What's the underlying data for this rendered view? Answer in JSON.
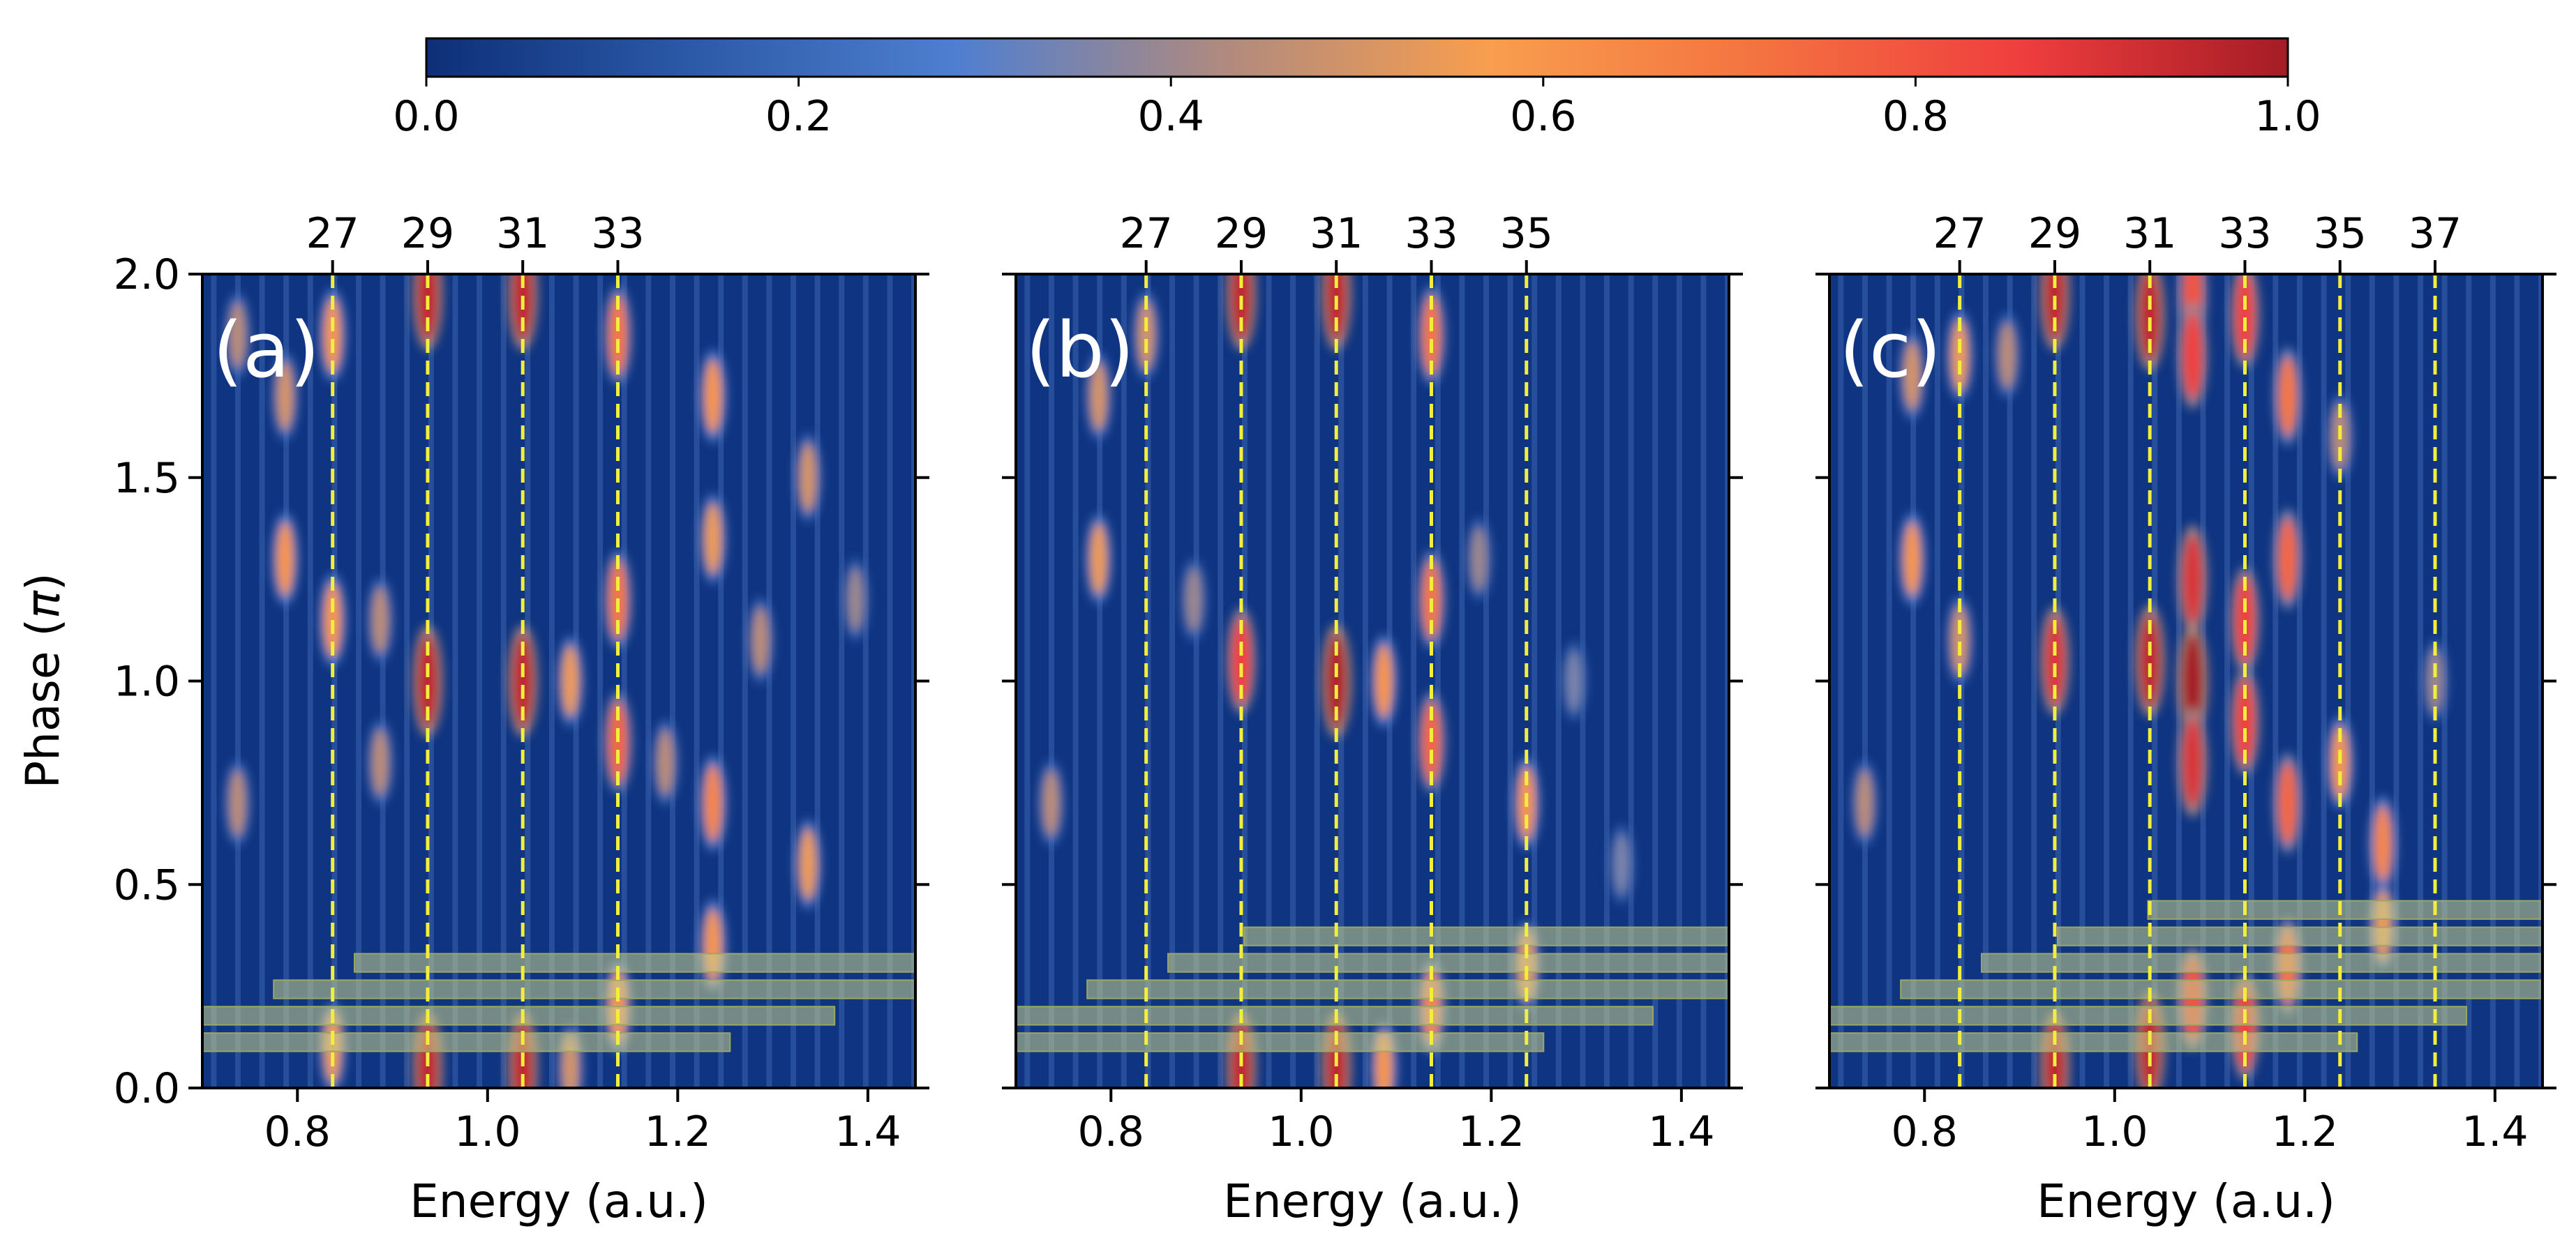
{
  "chart_data": {
    "type": "heatmap",
    "colorbar": {
      "ticks": [
        "0.0",
        "0.2",
        "0.4",
        "0.6",
        "0.8",
        "1.0"
      ],
      "range": [
        0.0,
        1.0
      ],
      "colors": [
        "#0d2f78",
        "#2c5aa8",
        "#4f7fd0",
        "#b08a7e",
        "#f89e4e",
        "#f47340",
        "#ef3e3e",
        "#a51c25"
      ]
    },
    "shared_axes": {
      "xlabel": "Energy (a.u.)",
      "ylabel_prefix": "Phase (",
      "ylabel_symbol": "π",
      "ylabel_suffix": ")",
      "xlim": [
        0.7,
        1.45
      ],
      "ylim": [
        0.0,
        2.0
      ],
      "xticks": [
        0.8,
        1.0,
        1.2,
        1.4
      ],
      "xtick_labels": [
        "0.8",
        "1.0",
        "1.2",
        "1.4"
      ],
      "yticks": [
        0.0,
        0.5,
        1.0,
        1.5,
        2.0
      ],
      "ytick_labels": [
        "0.0",
        "0.5",
        "1.0",
        "1.5",
        "2.0"
      ],
      "harmonic_line_color": "#f2ee3c",
      "band_color": "#c9cf8a"
    },
    "panels": [
      {
        "label": "(a)",
        "harmonic_orders": [
          "27",
          "29",
          "31",
          "33"
        ],
        "harmonic_energies": [
          0.837,
          0.937,
          1.037,
          1.137
        ],
        "bands": [
          {
            "x": [
              0.86,
              1.45
            ],
            "y": [
              0.285,
              0.33
            ]
          },
          {
            "x": [
              0.775,
              1.45
            ],
            "y": [
              0.22,
              0.265
            ]
          },
          {
            "x": [
              0.7,
              1.365
            ],
            "y": [
              0.155,
              0.2
            ]
          },
          {
            "x": [
              0.7,
              1.255
            ],
            "y": [
              0.09,
              0.135
            ]
          }
        ],
        "blobs": [
          {
            "x": 0.937,
            "y": 1.0,
            "v": 0.95
          },
          {
            "x": 1.037,
            "y": 1.0,
            "v": 0.95
          },
          {
            "x": 0.937,
            "y": 1.95,
            "v": 0.95
          },
          {
            "x": 1.037,
            "y": 1.95,
            "v": 0.95
          },
          {
            "x": 0.937,
            "y": 0.05,
            "v": 0.95
          },
          {
            "x": 1.037,
            "y": 0.05,
            "v": 0.95
          },
          {
            "x": 0.837,
            "y": 1.85,
            "v": 0.6
          },
          {
            "x": 0.837,
            "y": 1.15,
            "v": 0.6
          },
          {
            "x": 0.837,
            "y": 0.1,
            "v": 0.55
          },
          {
            "x": 0.787,
            "y": 1.3,
            "v": 0.6
          },
          {
            "x": 0.787,
            "y": 1.7,
            "v": 0.5
          },
          {
            "x": 0.887,
            "y": 1.15,
            "v": 0.45
          },
          {
            "x": 0.887,
            "y": 0.8,
            "v": 0.45
          },
          {
            "x": 1.137,
            "y": 1.85,
            "v": 0.7
          },
          {
            "x": 1.137,
            "y": 1.2,
            "v": 0.7
          },
          {
            "x": 1.137,
            "y": 0.85,
            "v": 0.75
          },
          {
            "x": 1.137,
            "y": 0.2,
            "v": 0.6
          },
          {
            "x": 1.087,
            "y": 1.0,
            "v": 0.55
          },
          {
            "x": 1.087,
            "y": 0.05,
            "v": 0.5
          },
          {
            "x": 1.187,
            "y": 0.8,
            "v": 0.45
          },
          {
            "x": 1.237,
            "y": 1.7,
            "v": 0.6
          },
          {
            "x": 1.237,
            "y": 1.35,
            "v": 0.55
          },
          {
            "x": 1.237,
            "y": 0.7,
            "v": 0.65
          },
          {
            "x": 1.237,
            "y": 0.35,
            "v": 0.6
          },
          {
            "x": 1.287,
            "y": 1.1,
            "v": 0.45
          },
          {
            "x": 1.337,
            "y": 1.5,
            "v": 0.5
          },
          {
            "x": 1.337,
            "y": 0.55,
            "v": 0.55
          },
          {
            "x": 1.387,
            "y": 1.2,
            "v": 0.4
          },
          {
            "x": 0.737,
            "y": 1.85,
            "v": 0.45
          },
          {
            "x": 0.737,
            "y": 0.7,
            "v": 0.45
          }
        ]
      },
      {
        "label": "(b)",
        "harmonic_orders": [
          "27",
          "29",
          "31",
          "33",
          "35"
        ],
        "harmonic_energies": [
          0.837,
          0.937,
          1.037,
          1.137,
          1.237
        ],
        "bands": [
          {
            "x": [
              0.94,
              1.45
            ],
            "y": [
              0.35,
              0.395
            ]
          },
          {
            "x": [
              0.86,
              1.45
            ],
            "y": [
              0.285,
              0.33
            ]
          },
          {
            "x": [
              0.775,
              1.45
            ],
            "y": [
              0.22,
              0.265
            ]
          },
          {
            "x": [
              0.7,
              1.37
            ],
            "y": [
              0.155,
              0.2
            ]
          },
          {
            "x": [
              0.7,
              1.255
            ],
            "y": [
              0.09,
              0.135
            ]
          }
        ],
        "blobs": [
          {
            "x": 0.937,
            "y": 1.95,
            "v": 0.95
          },
          {
            "x": 1.037,
            "y": 1.95,
            "v": 0.95
          },
          {
            "x": 0.937,
            "y": 1.05,
            "v": 0.85
          },
          {
            "x": 1.037,
            "y": 1.0,
            "v": 0.98
          },
          {
            "x": 0.937,
            "y": 0.05,
            "v": 0.95
          },
          {
            "x": 1.037,
            "y": 0.05,
            "v": 0.95
          },
          {
            "x": 1.137,
            "y": 1.85,
            "v": 0.7
          },
          {
            "x": 1.137,
            "y": 1.2,
            "v": 0.7
          },
          {
            "x": 1.137,
            "y": 0.85,
            "v": 0.75
          },
          {
            "x": 1.137,
            "y": 0.2,
            "v": 0.65
          },
          {
            "x": 1.087,
            "y": 1.0,
            "v": 0.6
          },
          {
            "x": 1.087,
            "y": 0.05,
            "v": 0.6
          },
          {
            "x": 0.787,
            "y": 1.3,
            "v": 0.55
          },
          {
            "x": 0.787,
            "y": 1.7,
            "v": 0.5
          },
          {
            "x": 0.837,
            "y": 1.85,
            "v": 0.5
          },
          {
            "x": 0.887,
            "y": 1.2,
            "v": 0.4
          },
          {
            "x": 1.237,
            "y": 0.7,
            "v": 0.6
          },
          {
            "x": 1.237,
            "y": 0.3,
            "v": 0.55
          },
          {
            "x": 1.187,
            "y": 1.3,
            "v": 0.4
          },
          {
            "x": 1.287,
            "y": 1.0,
            "v": 0.35
          },
          {
            "x": 1.337,
            "y": 0.55,
            "v": 0.35
          },
          {
            "x": 0.737,
            "y": 0.7,
            "v": 0.45
          }
        ]
      },
      {
        "label": "(c)",
        "harmonic_orders": [
          "27",
          "29",
          "31",
          "33",
          "35",
          "37"
        ],
        "harmonic_energies": [
          0.837,
          0.937,
          1.037,
          1.137,
          1.237,
          1.337
        ],
        "bands": [
          {
            "x": [
              1.035,
              1.45
            ],
            "y": [
              0.415,
              0.46
            ]
          },
          {
            "x": [
              0.94,
              1.45
            ],
            "y": [
              0.35,
              0.395
            ]
          },
          {
            "x": [
              0.86,
              1.45
            ],
            "y": [
              0.285,
              0.33
            ]
          },
          {
            "x": [
              0.775,
              1.45
            ],
            "y": [
              0.22,
              0.265
            ]
          },
          {
            "x": [
              0.7,
              1.37
            ],
            "y": [
              0.155,
              0.2
            ]
          },
          {
            "x": [
              0.7,
              1.255
            ],
            "y": [
              0.09,
              0.135
            ]
          }
        ],
        "blobs": [
          {
            "x": 0.937,
            "y": 1.95,
            "v": 0.95
          },
          {
            "x": 0.937,
            "y": 1.05,
            "v": 0.9
          },
          {
            "x": 0.937,
            "y": 0.05,
            "v": 0.95
          },
          {
            "x": 1.037,
            "y": 1.9,
            "v": 0.95
          },
          {
            "x": 1.037,
            "y": 1.05,
            "v": 0.95
          },
          {
            "x": 1.037,
            "y": 0.1,
            "v": 0.95
          },
          {
            "x": 1.082,
            "y": 1.95,
            "v": 0.8
          },
          {
            "x": 1.082,
            "y": 1.8,
            "v": 0.85
          },
          {
            "x": 1.082,
            "y": 1.25,
            "v": 0.9
          },
          {
            "x": 1.082,
            "y": 1.0,
            "v": 1.0
          },
          {
            "x": 1.082,
            "y": 0.8,
            "v": 0.9
          },
          {
            "x": 1.082,
            "y": 0.22,
            "v": 0.8
          },
          {
            "x": 1.137,
            "y": 1.9,
            "v": 0.85
          },
          {
            "x": 1.137,
            "y": 1.15,
            "v": 0.85
          },
          {
            "x": 1.137,
            "y": 0.9,
            "v": 0.85
          },
          {
            "x": 1.137,
            "y": 0.15,
            "v": 0.85
          },
          {
            "x": 1.182,
            "y": 1.7,
            "v": 0.7
          },
          {
            "x": 1.182,
            "y": 1.3,
            "v": 0.75
          },
          {
            "x": 1.182,
            "y": 0.7,
            "v": 0.75
          },
          {
            "x": 1.182,
            "y": 0.3,
            "v": 0.7
          },
          {
            "x": 0.837,
            "y": 1.8,
            "v": 0.55
          },
          {
            "x": 0.837,
            "y": 1.1,
            "v": 0.5
          },
          {
            "x": 0.787,
            "y": 1.3,
            "v": 0.6
          },
          {
            "x": 0.787,
            "y": 1.75,
            "v": 0.5
          },
          {
            "x": 0.887,
            "y": 1.8,
            "v": 0.45
          },
          {
            "x": 1.237,
            "y": 0.8,
            "v": 0.6
          },
          {
            "x": 1.237,
            "y": 1.6,
            "v": 0.45
          },
          {
            "x": 1.282,
            "y": 0.6,
            "v": 0.65
          },
          {
            "x": 1.282,
            "y": 0.4,
            "v": 0.55
          },
          {
            "x": 1.337,
            "y": 1.0,
            "v": 0.4
          },
          {
            "x": 0.737,
            "y": 0.7,
            "v": 0.45
          }
        ]
      }
    ]
  }
}
